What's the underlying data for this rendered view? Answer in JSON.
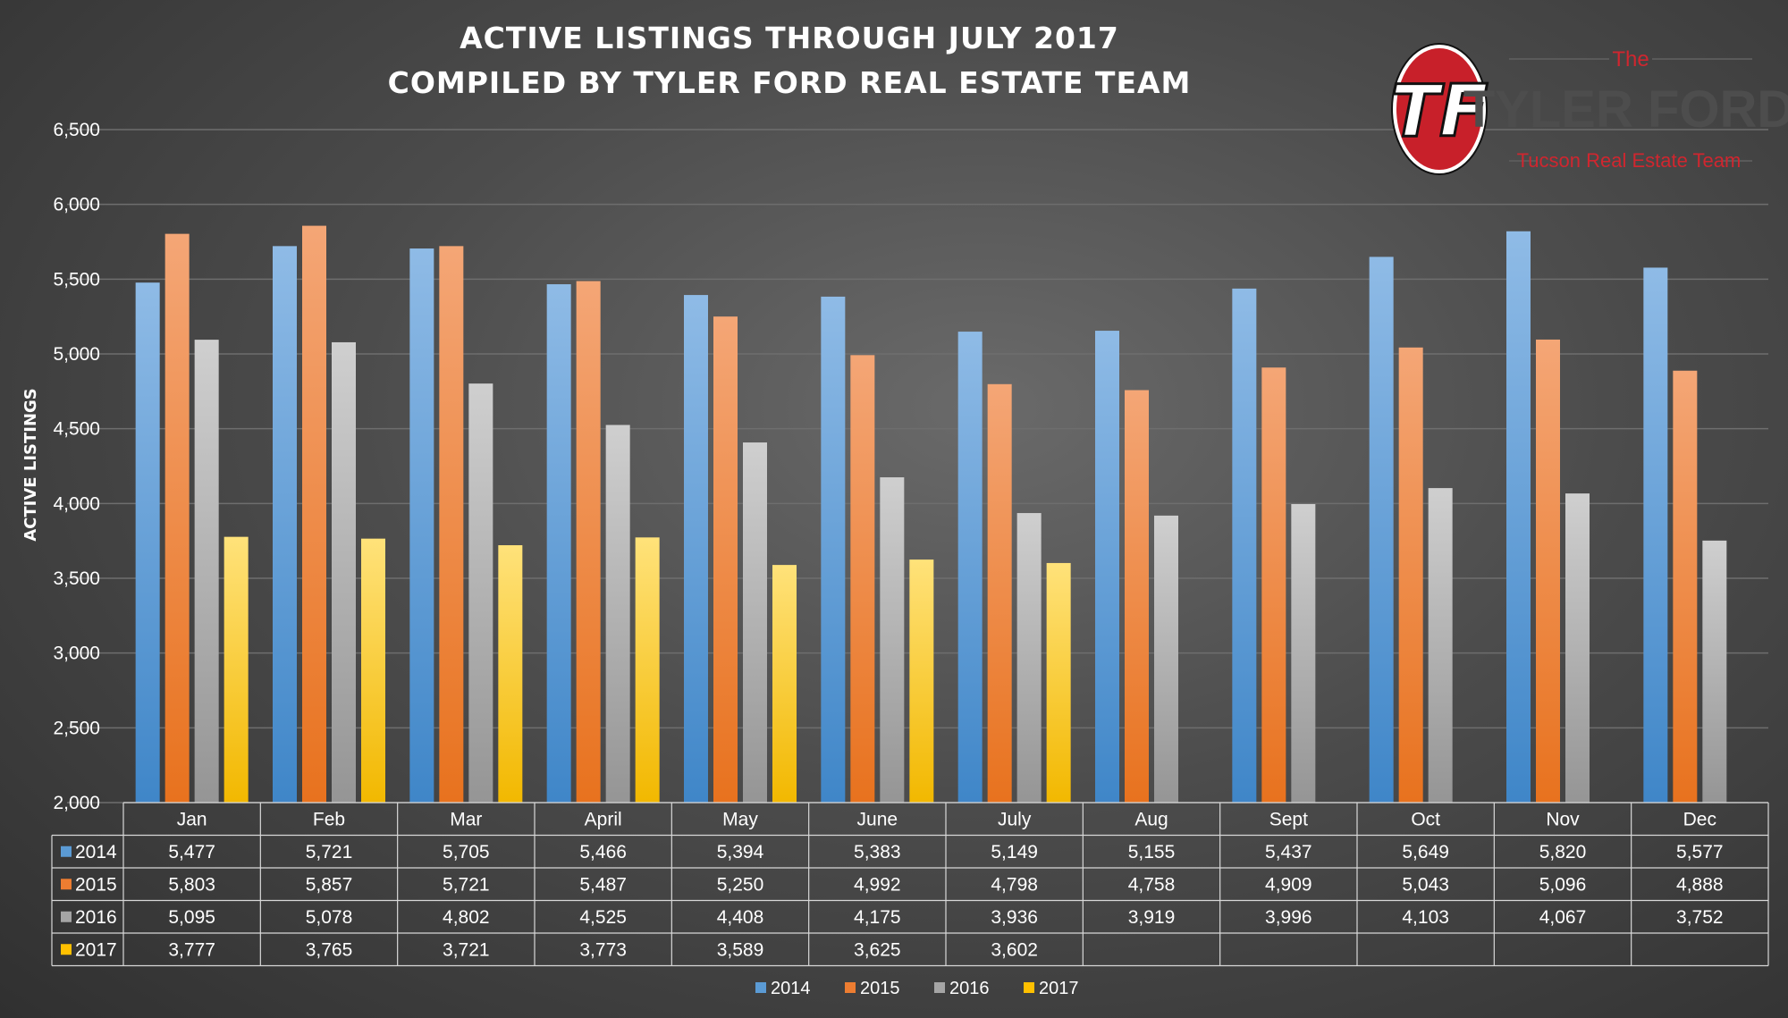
{
  "chart_data": {
    "type": "bar",
    "title": "ACTIVE LISTINGS THROUGH JULY 2017",
    "subtitle": "COMPILED BY TYLER FORD REAL ESTATE TEAM",
    "ylabel": "ACTIVE LISTINGS",
    "xlabel": "",
    "ylim": [
      2000,
      6500
    ],
    "yticks": [
      2000,
      2500,
      3000,
      3500,
      4000,
      4500,
      5000,
      5500,
      6000,
      6500
    ],
    "ytick_labels": [
      "2,000",
      "2,500",
      "3,000",
      "3,500",
      "4,000",
      "4,500",
      "5,000",
      "5,500",
      "6,000",
      "6,500"
    ],
    "grid": true,
    "legend_position": "bottom",
    "categories": [
      "Jan",
      "Feb",
      "Mar",
      "April",
      "May",
      "June",
      "July",
      "Aug",
      "Sept",
      "Oct",
      "Nov",
      "Dec"
    ],
    "series": [
      {
        "name": "2014",
        "color": "#5b9bd5",
        "values": [
          5477,
          5721,
          5705,
          5466,
          5394,
          5383,
          5149,
          5155,
          5437,
          5649,
          5820,
          5577
        ],
        "labels": [
          "5,477",
          "5,721",
          "5,705",
          "5,466",
          "5,394",
          "5,383",
          "5,149",
          "5,155",
          "5,437",
          "5,649",
          "5,820",
          "5,577"
        ]
      },
      {
        "name": "2015",
        "color": "#ed7d31",
        "values": [
          5803,
          5857,
          5721,
          5487,
          5250,
          4992,
          4798,
          4758,
          4909,
          5043,
          5096,
          4888
        ],
        "labels": [
          "5,803",
          "5,857",
          "5,721",
          "5,487",
          "5,250",
          "4,992",
          "4,798",
          "4,758",
          "4,909",
          "5,043",
          "5,096",
          "4,888"
        ]
      },
      {
        "name": "2016",
        "color": "#a5a5a5",
        "values": [
          5095,
          5078,
          4802,
          4525,
          4408,
          4175,
          3936,
          3919,
          3996,
          4103,
          4067,
          3752
        ],
        "labels": [
          "5,095",
          "5,078",
          "4,802",
          "4,525",
          "4,408",
          "4,175",
          "3,936",
          "3,919",
          "3,996",
          "4,103",
          "4,067",
          "3,752"
        ]
      },
      {
        "name": "2017",
        "color": "#ffc000",
        "values": [
          3777,
          3765,
          3721,
          3773,
          3589,
          3625,
          3602,
          null,
          null,
          null,
          null,
          null
        ],
        "labels": [
          "3,777",
          "3,765",
          "3,721",
          "3,773",
          "3,589",
          "3,625",
          "3,602",
          "",
          "",
          "",
          "",
          ""
        ]
      }
    ]
  },
  "logo": {
    "monogram": "TF",
    "line1": "The",
    "line2": "TYLER FORD",
    "line3": "Tucson Real Estate Team",
    "accent_color": "#d0262f"
  }
}
